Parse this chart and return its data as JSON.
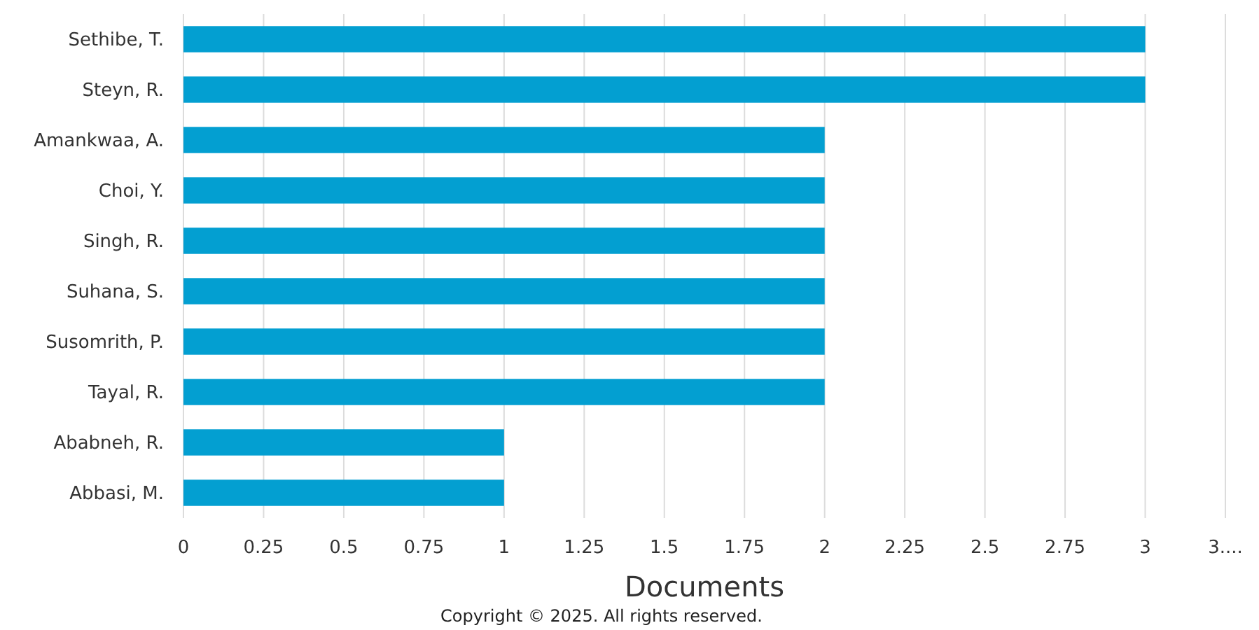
{
  "chart_data": {
    "type": "bar",
    "orientation": "horizontal",
    "xlabel": "Documents",
    "categories": [
      "Sethibe, T.",
      "Steyn, R.",
      "Amankwaa, A.",
      "Choi, Y.",
      "Singh, R.",
      "Suhana, S.",
      "Susomrith, P.",
      "Tayal, R.",
      "Ababneh, R.",
      "Abbasi, M."
    ],
    "values": [
      3,
      3,
      2,
      2,
      2,
      2,
      2,
      2,
      1,
      1
    ],
    "color": "#039fd1",
    "xlim": [
      0,
      3.25
    ],
    "xticks": [
      0,
      0.25,
      0.5,
      0.75,
      1,
      1.25,
      1.5,
      1.75,
      2,
      2.25,
      2.5,
      2.75,
      3,
      {
        "value": 3.25,
        "label": "3...."
      }
    ],
    "grid": "x",
    "annotations": [
      "Copyright © 2025. All rights reserved."
    ]
  }
}
